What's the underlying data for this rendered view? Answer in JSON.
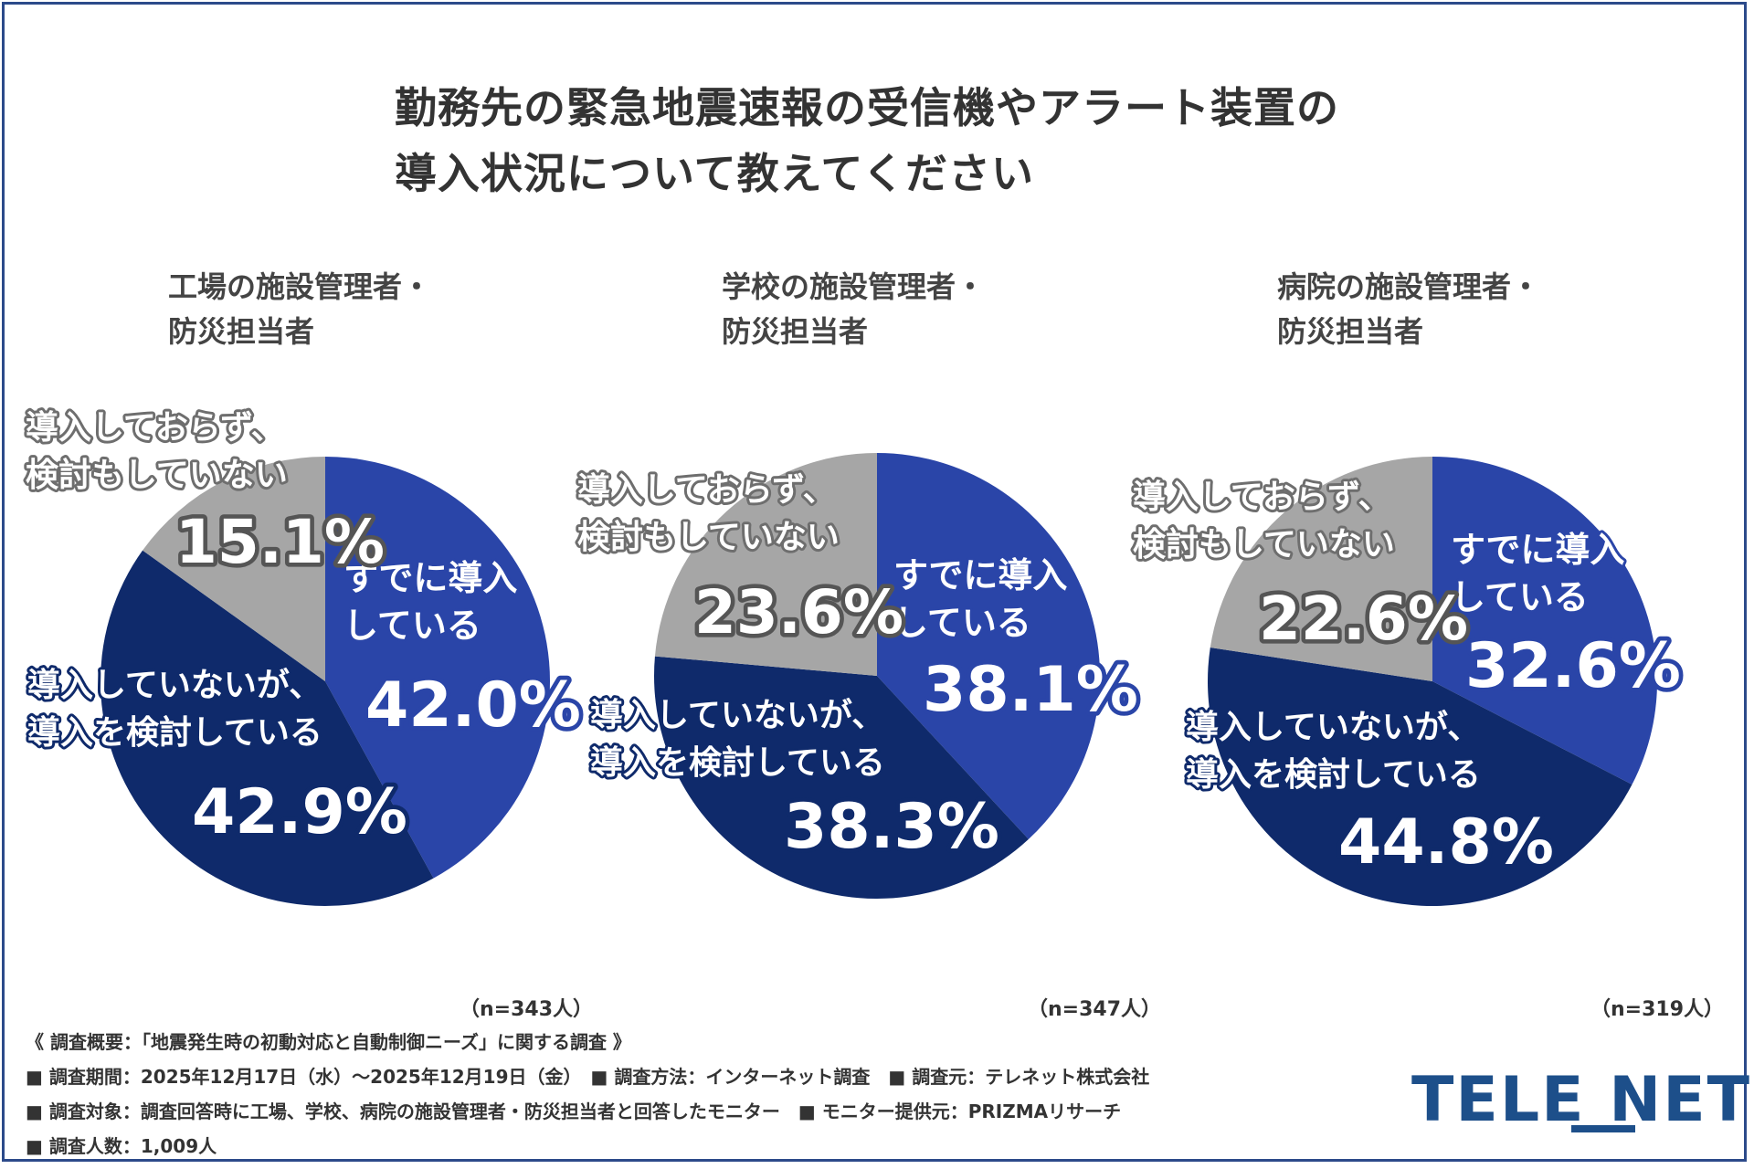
{
  "chart_data": {
    "type": "pie",
    "title_lines": [
      "勤務先の緊急地震速報の受信機やアラート装置の",
      "導入状況について教えてください"
    ],
    "charts": [
      {
        "subtitle_lines": [
          "工場の施設管理者・",
          "防災担当者"
        ],
        "n_label": "（n=343人）",
        "slices": [
          {
            "label": "すでに導入している",
            "value": 42.0,
            "display": "42.0%",
            "color": "#2a45a8"
          },
          {
            "label": "導入していないが、導入を検討している",
            "value": 42.9,
            "display": "42.9%",
            "color": "#0f2a6b"
          },
          {
            "label": "導入しておらず、検討もしていない",
            "value": 15.1,
            "display": "15.1%",
            "color": "#a6a6a6"
          }
        ]
      },
      {
        "subtitle_lines": [
          "学校の施設管理者・",
          "防災担当者"
        ],
        "n_label": "（n=347人）",
        "slices": [
          {
            "label": "すでに導入している",
            "value": 38.1,
            "display": "38.1%",
            "color": "#2a45a8"
          },
          {
            "label": "導入していないが、導入を検討している",
            "value": 38.3,
            "display": "38.3%",
            "color": "#0f2a6b"
          },
          {
            "label": "導入しておらず、検討もしていない",
            "value": 23.6,
            "display": "23.6%",
            "color": "#a6a6a6"
          }
        ]
      },
      {
        "subtitle_lines": [
          "病院の施設管理者・",
          "防災担当者"
        ],
        "n_label": "（n=319人）",
        "slices": [
          {
            "label": "すでに導入している",
            "value": 32.6,
            "display": "32.6%",
            "color": "#2a45a8"
          },
          {
            "label": "導入していないが、導入を検討している",
            "value": 44.8,
            "display": "44.8%",
            "color": "#0f2a6b"
          },
          {
            "label": "導入しておらず、検討もしていない",
            "value": 22.6,
            "display": "22.6%",
            "color": "#a6a6a6"
          }
        ]
      }
    ],
    "label_lines": {
      "already": [
        "すでに導入",
        "している"
      ],
      "considering": [
        "導入していないが、",
        "導入を検討している"
      ],
      "not": [
        "導入しておらず、",
        "検討もしていない"
      ]
    }
  },
  "footer": {
    "overview": "《 調査概要：「地震発生時の初動対応と自動制御ニーズ」に関する調査 》",
    "line1": "■ 調査期間：2025年12月17日（水）～2025年12月19日（金）　■ 調査方法：インターネット調査　■ 調査元：テレネット株式会社",
    "line2": "■ 調査対象：調査回答時に工場、学校、病院の施設管理者・防災担当者と回答したモニター　■ モニター提供元：PRIZMAリサーチ",
    "line3": "■ 調査人数：1,009人",
    "logo": "TELE NET"
  }
}
